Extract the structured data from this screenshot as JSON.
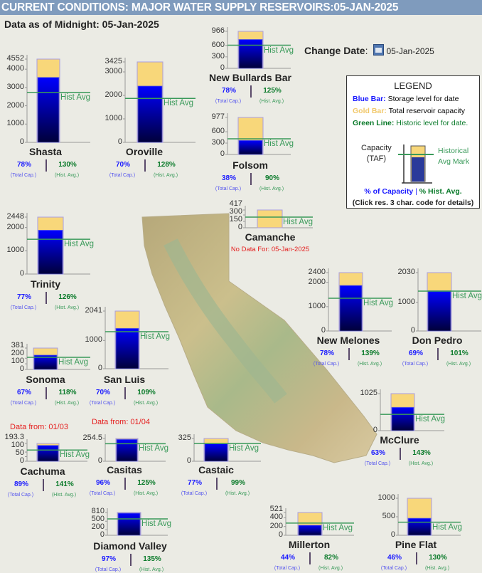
{
  "header": {
    "title": "CURRENT CONDITIONS: MAJOR WATER SUPPLY RESERVOIRS:05-JAN-2025",
    "as_of": "Data as of Midnight: 05-Jan-2025",
    "change_date_label": "Change Date",
    "change_date_colon": ":",
    "change_date_value": "05-Jan-2025"
  },
  "legend": {
    "title": "LEGEND",
    "blue_key": "Blue Bar:",
    "blue_text": "Storage level for date",
    "gold_key": "Gold Bar:",
    "gold_text": "Total reservoir capacity",
    "green_key": "Green Line:",
    "green_text": "Historic level for date.",
    "capacity_label": "Capacity",
    "taf_label": "(TAF)",
    "hist_mark_1": "Historical",
    "hist_mark_2": "Avg Mark",
    "pct_cap": "% of Capacity",
    "sep": "|",
    "pct_hist": "% Hist. Avg.",
    "click_note": "(Click res. 3 char. code for details)"
  },
  "labels": {
    "hist_avg": "Hist Avg",
    "total_cap": "(Total Cap.)",
    "hist_avg_sub": "(Hist. Avg.)"
  },
  "colors": {
    "storage": "#0000ff",
    "capacity": "#f8d77a",
    "hist_line": "#3a9a5a",
    "pct_cap": "#1a1aff",
    "pct_hist": "#0a7a2a"
  },
  "chart_data": {
    "type": "bar",
    "units": "TAF",
    "reservoirs": [
      {
        "name": "Shasta",
        "capacity": 4552,
        "pct_capacity": "78%",
        "pct_hist": "130%",
        "ticks": [
          "0",
          "1000",
          "2000",
          "3000",
          "4000",
          "4552"
        ]
      },
      {
        "name": "Oroville",
        "capacity": 3425,
        "pct_capacity": "70%",
        "pct_hist": "128%",
        "ticks": [
          "0",
          "1000",
          "2000",
          "3000",
          "3425"
        ]
      },
      {
        "name": "New Bullards Bar",
        "capacity": 966,
        "pct_capacity": "78%",
        "pct_hist": "125%",
        "ticks": [
          "0",
          "300",
          "600",
          "966"
        ]
      },
      {
        "name": "Folsom",
        "capacity": 977,
        "pct_capacity": "38%",
        "pct_hist": "90%",
        "ticks": [
          "0",
          "300",
          "600",
          "977"
        ]
      },
      {
        "name": "Trinity",
        "capacity": 2448,
        "pct_capacity": "77%",
        "pct_hist": "126%",
        "ticks": [
          "0",
          "1000",
          "2000",
          "2448"
        ]
      },
      {
        "name": "Camanche",
        "capacity": 417,
        "pct_capacity": null,
        "pct_hist": null,
        "hist_avg_estimate": 250,
        "note": "No Data For: 05-Jan-2025",
        "ticks": [
          "0",
          "150",
          "300",
          "417"
        ]
      },
      {
        "name": "Sonoma",
        "capacity": 381,
        "pct_capacity": "67%",
        "pct_hist": "118%",
        "ticks": [
          "0",
          "100",
          "200",
          "381"
        ]
      },
      {
        "name": "San Luis",
        "capacity": 2041,
        "pct_capacity": "70%",
        "pct_hist": "109%",
        "ticks": [
          "0",
          "1000",
          "2041"
        ]
      },
      {
        "name": "New Melones",
        "capacity": 2400,
        "pct_capacity": "78%",
        "pct_hist": "139%",
        "ticks": [
          "0",
          "1000",
          "2000",
          "2400"
        ]
      },
      {
        "name": "Don Pedro",
        "capacity": 2030,
        "pct_capacity": "69%",
        "pct_hist": "101%",
        "ticks": [
          "0",
          "1000",
          "2030"
        ]
      },
      {
        "name": "McClure",
        "capacity": 1025,
        "pct_capacity": "63%",
        "pct_hist": "143%",
        "ticks": [
          "0",
          "1025"
        ]
      },
      {
        "name": "Cachuma",
        "capacity": 193.3,
        "pct_capacity": "89%",
        "pct_hist": "141%",
        "note": "Data from: 01/03",
        "ticks": [
          "0",
          "50",
          "100",
          "193.3"
        ]
      },
      {
        "name": "Casitas",
        "capacity": 254.5,
        "pct_capacity": "96%",
        "pct_hist": "125%",
        "note": "Data from: 01/04",
        "ticks": [
          "0",
          "254.5"
        ]
      },
      {
        "name": "Castaic",
        "capacity": 325,
        "pct_capacity": "77%",
        "pct_hist": "99%",
        "ticks": [
          "0",
          "325"
        ]
      },
      {
        "name": "Diamond Valley",
        "capacity": 810,
        "pct_capacity": "97%",
        "pct_hist": "135%",
        "ticks": [
          "0",
          "200",
          "500",
          "810"
        ]
      },
      {
        "name": "Millerton",
        "capacity": 521,
        "pct_capacity": "44%",
        "pct_hist": "82%",
        "ticks": [
          "0",
          "200",
          "400",
          "521"
        ]
      },
      {
        "name": "Pine Flat",
        "capacity": 1000,
        "pct_capacity": "46%",
        "pct_hist": "130%",
        "ticks": [
          "0",
          "500",
          "1000"
        ]
      }
    ]
  }
}
